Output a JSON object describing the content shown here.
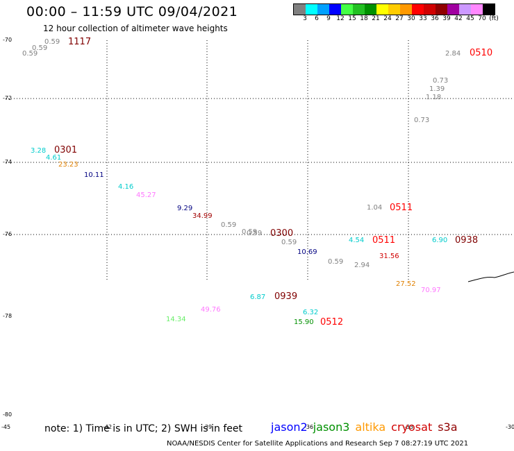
{
  "header": {
    "title": "00:00 – 11:59 UTC 09/04/2021",
    "subtitle": "12 hour collection of altimeter wave heights"
  },
  "color_scale": {
    "labels": [
      "3",
      "6",
      "9",
      "12",
      "15",
      "18",
      "21",
      "24",
      "27",
      "30",
      "33",
      "36",
      "39",
      "42",
      "45",
      "70",
      "(ft)"
    ],
    "colors": [
      "#808080",
      "#00ffff",
      "#00a0ff",
      "#0000ff",
      "#44ff44",
      "#22c022",
      "#009000",
      "#ffff00",
      "#ffcc00",
      "#ff9900",
      "#ff0000",
      "#d00000",
      "#900000",
      "#a000a0",
      "#cc99ff",
      "#ff88ff",
      "#000000"
    ]
  },
  "footer": {
    "note": "note: 1) Time is in UTC; 2) SWH is in feet",
    "satellites": [
      {
        "name": "jason2",
        "color": "#0000ff"
      },
      {
        "name": "jason3",
        "color": "#009000"
      },
      {
        "name": "altika",
        "color": "#ff9900"
      },
      {
        "name": "cryosat",
        "color": "#d00000"
      },
      {
        "name": "s3a",
        "color": "#900000"
      }
    ],
    "credit": "NOAA/NESDIS Center for Satellite Applications and Research    Sep  7 08:27:19 UTC 2021"
  },
  "chart_data": {
    "type": "scatter",
    "title": "12 hour collection of altimeter wave heights",
    "lat_ticks": [
      "-70",
      "-72",
      "-74",
      "-76",
      "-78",
      "-80"
    ],
    "lon_ticks": [
      "-45",
      "-42",
      "-39",
      "-36",
      "-33",
      "-30"
    ],
    "grid": true,
    "wave_heights": [
      {
        "value": "0.59",
        "color": "#808080"
      },
      {
        "value": "0.59",
        "color": "#808080"
      },
      {
        "value": "0.59",
        "color": "#808080"
      },
      {
        "value": "2.84",
        "color": "#808080"
      },
      {
        "value": "0.73",
        "color": "#808080"
      },
      {
        "value": "1.39",
        "color": "#808080"
      },
      {
        "value": "1.18",
        "color": "#808080"
      },
      {
        "value": "0.73",
        "color": "#808080"
      },
      {
        "value": "3.28",
        "color": "#00cccc"
      },
      {
        "value": "4.61",
        "color": "#00cccc"
      },
      {
        "value": "23.23",
        "color": "#e08000"
      },
      {
        "value": "10.11",
        "color": "#000080"
      },
      {
        "value": "4.16",
        "color": "#00cccc"
      },
      {
        "value": "45.27",
        "color": "#ff77ff"
      },
      {
        "value": "9.29",
        "color": "#000080"
      },
      {
        "value": "34.99",
        "color": "#a00000"
      },
      {
        "value": "0.59",
        "color": "#808080"
      },
      {
        "value": "0.59",
        "color": "#808080"
      },
      {
        "value": "0.59",
        "color": "#808080"
      },
      {
        "value": "0.59",
        "color": "#808080"
      },
      {
        "value": "1.04",
        "color": "#808080"
      },
      {
        "value": "10.69",
        "color": "#000080"
      },
      {
        "value": "4.54",
        "color": "#00cccc"
      },
      {
        "value": "0.59",
        "color": "#808080"
      },
      {
        "value": "2.94",
        "color": "#808080"
      },
      {
        "value": "31.56",
        "color": "#d00000"
      },
      {
        "value": "6.90",
        "color": "#00cccc"
      },
      {
        "value": "27.52",
        "color": "#e08000"
      },
      {
        "value": "70.97",
        "color": "#ff77ff"
      },
      {
        "value": "6.87",
        "color": "#00cccc"
      },
      {
        "value": "49.76",
        "color": "#ff77ff"
      },
      {
        "value": "14.34",
        "color": "#66ee66"
      },
      {
        "value": "6.32",
        "color": "#00cccc"
      },
      {
        "value": "15.90",
        "color": "#009000"
      }
    ],
    "pass_times": [
      {
        "value": "1117",
        "color": "#800000"
      },
      {
        "value": "0510",
        "color": "#ff0000"
      },
      {
        "value": "0301",
        "color": "#800000"
      },
      {
        "value": "0511",
        "color": "#ff0000"
      },
      {
        "value": "0300",
        "color": "#800000"
      },
      {
        "value": "0511",
        "color": "#ff0000"
      },
      {
        "value": "0938",
        "color": "#800000"
      },
      {
        "value": "0939",
        "color": "#800000"
      },
      {
        "value": "0512",
        "color": "#ff0000"
      }
    ]
  }
}
